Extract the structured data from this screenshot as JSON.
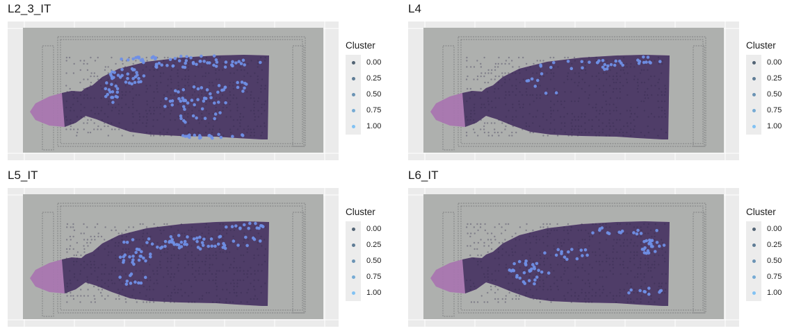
{
  "chart_data": [
    {
      "type": "scatter",
      "title": "L2_3_IT",
      "legend": {
        "title": "Cluster",
        "position": "right",
        "breaks": [
          "0.00",
          "0.25",
          "0.50",
          "0.75",
          "1.00"
        ]
      },
      "grid": true,
      "highlight_region": "upper cortical band and scattered spots in center-lower tissue"
    },
    {
      "type": "scatter",
      "title": "L4",
      "legend": {
        "title": "Cluster",
        "position": "right",
        "breaks": [
          "0.00",
          "0.25",
          "0.50",
          "0.75",
          "1.00"
        ]
      },
      "grid": true,
      "highlight_region": "sparse spots along upper band"
    },
    {
      "type": "scatter",
      "title": "L5_IT",
      "legend": {
        "title": "Cluster",
        "position": "right",
        "breaks": [
          "0.00",
          "0.25",
          "0.50",
          "0.75",
          "1.00"
        ]
      },
      "grid": true,
      "highlight_region": "middle cortical band"
    },
    {
      "type": "scatter",
      "title": "L6_IT",
      "legend": {
        "title": "Cluster",
        "position": "right",
        "breaks": [
          "0.00",
          "0.25",
          "0.50",
          "0.75",
          "1.00"
        ]
      },
      "grid": true,
      "highlight_region": "deep band and right edge cluster"
    }
  ],
  "colors": {
    "panel_bg": "#ebebeb",
    "gridline": "#ffffff",
    "slide": "#aeb0ae",
    "tissue_edge": "#a873b0",
    "tissue_base": "#4f3d68",
    "low": "#132b43",
    "high": "#56b1f7",
    "spot_high": "#6f8fe6"
  }
}
